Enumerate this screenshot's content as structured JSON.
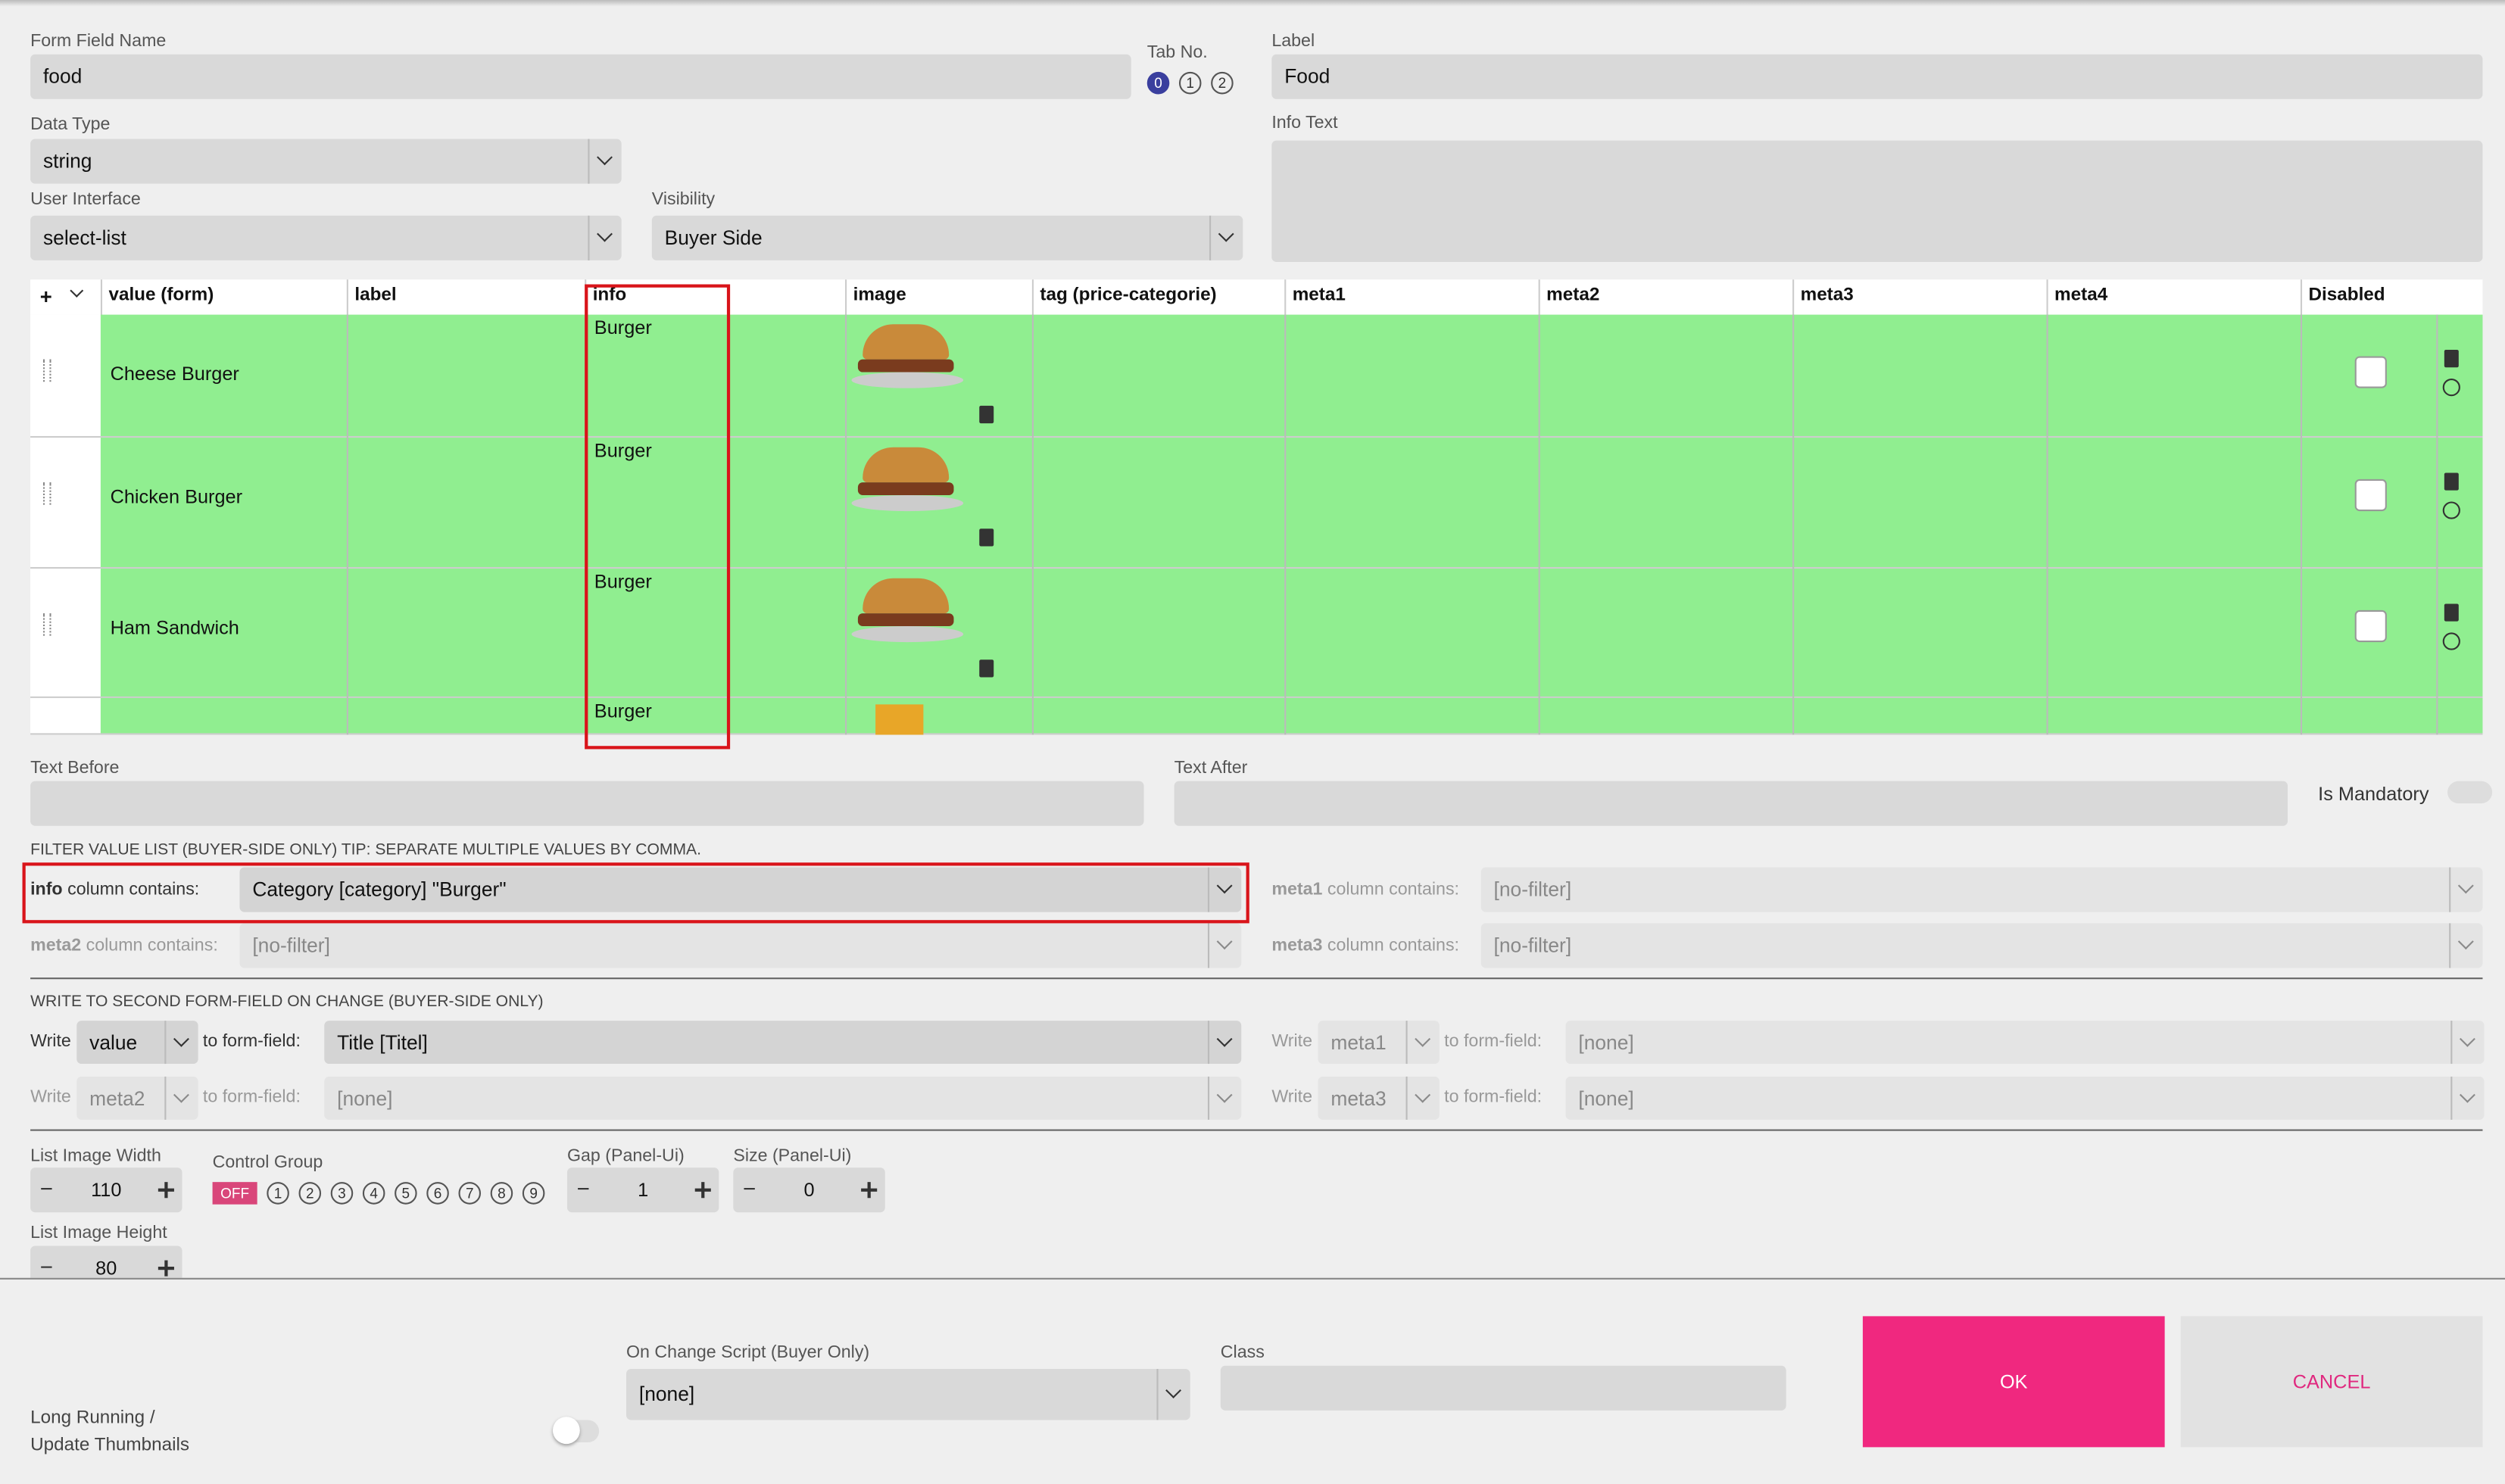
{
  "form": {
    "field_name": {
      "label": "Form Field Name",
      "value": "food"
    },
    "tab_no": {
      "label": "Tab No.",
      "options": [
        "0",
        "1",
        "2"
      ]
    },
    "label": {
      "label": "Label",
      "value": "Food"
    },
    "data_type": {
      "label": "Data Type",
      "value": "string"
    },
    "info_text": {
      "label": "Info Text"
    },
    "user_interface": {
      "label": "User Interface",
      "value": "select-list"
    },
    "visibility": {
      "label": "Visibility",
      "value": "Buyer Side"
    }
  },
  "table": {
    "add": "+",
    "columns": [
      "value (form)",
      "label",
      "info",
      "image",
      "tag (price-categorie)",
      "meta1",
      "meta2",
      "meta3",
      "meta4",
      "Disabled"
    ],
    "rows": [
      {
        "value": "Cheese Burger",
        "info": "Burger"
      },
      {
        "value": "Chicken Burger",
        "info": "Burger"
      },
      {
        "value": "Ham Sandwich",
        "info": "Burger"
      },
      {
        "info": "Burger"
      }
    ]
  },
  "text_before": "Text Before",
  "text_after": "Text After",
  "is_mandatory": "Is Mandatory",
  "filter": {
    "heading": "FILTER VALUE LIST (BUYER-SIDE ONLY) TIP: SEPARATE MULTIPLE VALUES BY COMMA.",
    "suffix": "column contains:",
    "items": [
      {
        "column": "info",
        "value": "Category [category] \"Burger\""
      },
      {
        "column": "meta1",
        "value": "[no-filter]"
      },
      {
        "column": "meta2",
        "value": "[no-filter]"
      },
      {
        "column": "meta3",
        "value": "[no-filter]"
      }
    ]
  },
  "write": {
    "heading": "WRITE TO SECOND FORM-FIELD ON CHANGE (BUYER-SIDE ONLY)",
    "write": "Write",
    "to": "to form-field:",
    "items": [
      {
        "source": "value",
        "target": "Title [Titel]"
      },
      {
        "source": "meta1",
        "target": "[none]"
      },
      {
        "source": "meta2",
        "target": "[none]"
      },
      {
        "source": "meta3",
        "target": "[none]"
      }
    ]
  },
  "steppers": {
    "list_image_width": {
      "label": "List Image Width",
      "value": 110
    },
    "gap": {
      "label": "Gap (Panel-Ui)",
      "value": 1
    },
    "size": {
      "label": "Size (Panel-Ui)",
      "value": 0
    },
    "list_image_height": {
      "label": "List Image Height",
      "value": 80
    }
  },
  "control_group": {
    "label": "Control Group",
    "off": "OFF",
    "options": [
      "1",
      "2",
      "3",
      "4",
      "5",
      "6",
      "7",
      "8",
      "9"
    ]
  },
  "footer": {
    "long_running": [
      "Long Running /",
      "Update Thumbnails"
    ],
    "on_change_label": "On Change Script (Buyer Only)",
    "on_change_value": "[none]",
    "class_label": "Class",
    "ok": "OK",
    "cancel": "CANCEL"
  }
}
